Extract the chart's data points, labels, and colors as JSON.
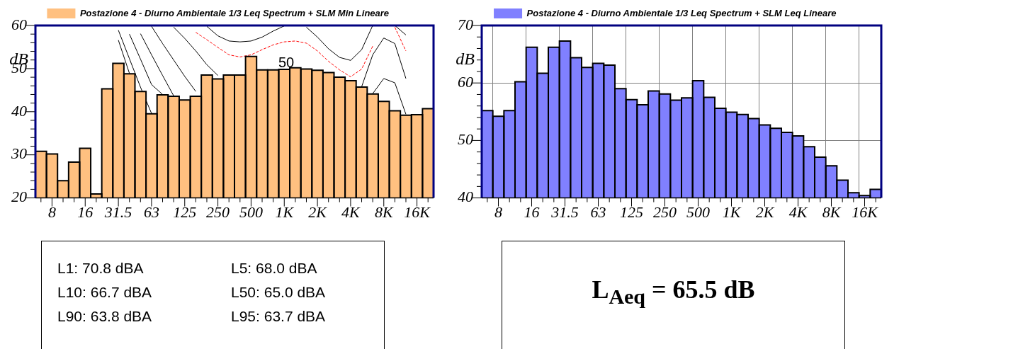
{
  "chart_data": [
    {
      "type": "bar",
      "ylabel": "dB",
      "legend": "top",
      "grid": false,
      "categories": [
        null,
        "8",
        null,
        null,
        "16",
        null,
        null,
        "31.5",
        null,
        null,
        "63",
        null,
        null,
        "125",
        null,
        null,
        "250",
        null,
        null,
        "500",
        null,
        null,
        "1K",
        null,
        null,
        "2K",
        null,
        null,
        "4K",
        null,
        null,
        "8K",
        null,
        null,
        "16K",
        null
      ],
      "ylim": [
        20,
        60
      ],
      "yticks": [
        20,
        {
          "value": 22,
          "label": null
        },
        {
          "value": 24,
          "label": null
        },
        {
          "value": 26,
          "label": null
        },
        {
          "value": 28,
          "label": null
        },
        30,
        {
          "value": 32,
          "label": null
        },
        {
          "value": 34,
          "label": null
        },
        {
          "value": 36,
          "label": null
        },
        {
          "value": 38,
          "label": null
        },
        40,
        {
          "value": 42,
          "label": null
        },
        {
          "value": 44,
          "label": null
        },
        {
          "value": 46,
          "label": null
        },
        {
          "value": 48,
          "label": null
        },
        50,
        {
          "value": 52,
          "label": null
        },
        {
          "value": 54,
          "label": null
        },
        {
          "value": 56,
          "label": null
        },
        {
          "value": 58,
          "label": null
        },
        60
      ],
      "annotations": [
        "50"
      ],
      "series": [
        {
          "name": "Postazione 4 - Diurno Ambientale 1/3 Leq Spectrum + SLM Min Lineare",
          "color": "#ffc080",
          "values": [
            30.8,
            30.2,
            24.0,
            28.3,
            31.5,
            20.9,
            45.3,
            51.2,
            48.8,
            44.7,
            39.5,
            43.9,
            43.6,
            42.7,
            43.6,
            48.5,
            47.6,
            48.5,
            48.5,
            52.8,
            49.7,
            49.7,
            49.8,
            50.2,
            49.9,
            49.6,
            49.1,
            48.0,
            47.2,
            45.7,
            44.1,
            42.4,
            40.2,
            39.2,
            39.3,
            40.7
          ]
        },
        {
          "type": "line",
          "color": "#000000",
          "values": [
            null,
            null,
            null,
            null,
            null,
            null,
            null,
            56.6,
            48.9,
            null,
            null,
            null,
            null,
            null,
            null,
            null,
            null,
            null,
            null,
            null,
            null,
            null,
            null,
            null,
            null,
            null,
            null,
            null,
            null,
            null,
            null,
            null,
            null,
            null,
            null,
            null
          ]
        },
        {
          "type": "line",
          "color": "#000000",
          "values": [
            null,
            null,
            null,
            null,
            null,
            null,
            null,
            58.9,
            52.3,
            45.7,
            39.6,
            null,
            null,
            null,
            null,
            null,
            null,
            null,
            null,
            null,
            null,
            null,
            null,
            null,
            null,
            null,
            null,
            null,
            null,
            null,
            null,
            null,
            null,
            null,
            null,
            null
          ]
        },
        {
          "type": "line",
          "color": "#000000",
          "values": [
            null,
            null,
            null,
            null,
            null,
            null,
            null,
            null,
            58.0,
            52.2,
            46.3,
            44.0,
            null,
            null,
            null,
            null,
            null,
            null,
            null,
            null,
            null,
            null,
            null,
            null,
            null,
            null,
            null,
            null,
            null,
            null,
            null,
            null,
            null,
            null,
            null,
            null
          ]
        },
        {
          "type": "line",
          "color": "#000000",
          "values": [
            null,
            null,
            null,
            null,
            null,
            null,
            null,
            null,
            null,
            58.1,
            53.2,
            48.4,
            43.7,
            null,
            null,
            null,
            null,
            null,
            null,
            null,
            null,
            null,
            null,
            null,
            null,
            null,
            null,
            null,
            null,
            null,
            null,
            null,
            null,
            null,
            null,
            null
          ]
        },
        {
          "type": "line",
          "color": "#000000",
          "values": [
            null,
            null,
            null,
            null,
            null,
            null,
            null,
            null,
            null,
            null,
            59.8,
            55.8,
            52.0,
            48.2,
            44.7,
            null,
            null,
            null,
            null,
            null,
            null,
            null,
            null,
            null,
            null,
            null,
            null,
            null,
            null,
            null,
            null,
            null,
            null,
            null,
            null,
            null
          ]
        },
        {
          "type": "line",
          "color": "#000000",
          "values": [
            null,
            null,
            null,
            null,
            null,
            null,
            null,
            null,
            null,
            null,
            null,
            null,
            59.6,
            57.0,
            54.1,
            50.9,
            48.4,
            null,
            null,
            null,
            null,
            null,
            null,
            null,
            null,
            null,
            null,
            null,
            null,
            null,
            null,
            null,
            null,
            null,
            null,
            null
          ]
        },
        {
          "type": "line",
          "color": "#000000",
          "values": [
            null,
            null,
            null,
            null,
            null,
            null,
            null,
            null,
            null,
            null,
            null,
            null,
            null,
            null,
            null,
            59.8,
            57.6,
            56.4,
            56.2,
            56.4,
            57.3,
            58.7,
            59.9,
            null,
            59.6,
            57.3,
            54.6,
            52.6,
            51.9,
            54.4,
            60.0,
            null,
            null,
            null,
            null,
            null
          ]
        },
        {
          "type": "line",
          "color": "#ff0000",
          "line_style": "dashed",
          "values": [
            null,
            null,
            null,
            null,
            null,
            null,
            null,
            null,
            null,
            null,
            null,
            null,
            null,
            null,
            58.4,
            56.7,
            54.9,
            53.2,
            52.7,
            53.2,
            54.4,
            55.5,
            56.2,
            56.4,
            55.9,
            54.1,
            51.7,
            49.7,
            48.1,
            49.9,
            55.2,
            null,
            null,
            null,
            null,
            null
          ]
        },
        {
          "type": "line",
          "color": "#ff0000",
          "line_style": "dashed",
          "values": [
            null,
            null,
            null,
            null,
            null,
            null,
            null,
            null,
            null,
            null,
            null,
            null,
            null,
            null,
            null,
            null,
            null,
            null,
            null,
            null,
            null,
            null,
            null,
            null,
            null,
            null,
            null,
            null,
            null,
            null,
            null,
            null,
            59.6,
            54.1,
            null,
            null
          ]
        },
        {
          "type": "line",
          "color": "#000000",
          "values": [
            null,
            null,
            null,
            null,
            null,
            null,
            null,
            null,
            null,
            null,
            null,
            null,
            null,
            null,
            null,
            null,
            null,
            null,
            null,
            null,
            null,
            null,
            null,
            null,
            null,
            null,
            null,
            null,
            null,
            null,
            null,
            null,
            60.0,
            57.8,
            null,
            null
          ]
        },
        {
          "type": "line",
          "color": "#000000",
          "values": [
            null,
            null,
            null,
            null,
            null,
            null,
            null,
            null,
            null,
            null,
            null,
            null,
            null,
            null,
            null,
            null,
            null,
            null,
            null,
            null,
            null,
            null,
            null,
            null,
            null,
            null,
            null,
            null,
            null,
            45.8,
            53.2,
            57.1,
            55.8,
            47.7,
            null,
            null
          ]
        },
        {
          "type": "line",
          "color": "#000000",
          "values": [
            null,
            null,
            null,
            null,
            null,
            null,
            null,
            null,
            null,
            null,
            null,
            null,
            null,
            null,
            null,
            null,
            null,
            null,
            null,
            null,
            null,
            null,
            null,
            null,
            null,
            null,
            null,
            null,
            null,
            null,
            44.2,
            47.7,
            46.7,
            39.4,
            null,
            null
          ]
        }
      ]
    },
    {
      "type": "bar",
      "ylabel": "dB",
      "legend": "top",
      "grid": true,
      "categories": [
        null,
        "8",
        null,
        null,
        "16",
        null,
        null,
        "31.5",
        null,
        null,
        "63",
        null,
        null,
        "125",
        null,
        null,
        "250",
        null,
        null,
        "500",
        null,
        null,
        "1K",
        null,
        null,
        "2K",
        null,
        null,
        "4K",
        null,
        null,
        "8K",
        null,
        null,
        "16K",
        null
      ],
      "ylim": [
        40,
        70
      ],
      "yticks": [
        40,
        {
          "value": 42,
          "label": null
        },
        {
          "value": 44,
          "label": null
        },
        {
          "value": 46,
          "label": null
        },
        {
          "value": 48,
          "label": null
        },
        50,
        {
          "value": 52,
          "label": null
        },
        {
          "value": 54,
          "label": null
        },
        {
          "value": 56,
          "label": null
        },
        {
          "value": 58,
          "label": null
        },
        60,
        {
          "value": 62,
          "label": null
        },
        {
          "value": 64,
          "label": null
        },
        {
          "value": 66,
          "label": null
        },
        {
          "value": 68,
          "label": null
        },
        70
      ],
      "series": [
        {
          "name": "Postazione 4 - Diurno Ambientale 1/3 Leq Spectrum + SLM Leq Lineare",
          "color": "#8080ff",
          "values": [
            55.2,
            54.2,
            55.2,
            60.2,
            66.2,
            61.7,
            66.2,
            67.3,
            64.4,
            62.7,
            63.4,
            63.1,
            59.0,
            57.1,
            56.2,
            58.6,
            58.1,
            57.0,
            57.4,
            60.4,
            57.5,
            55.6,
            54.9,
            54.5,
            53.8,
            52.7,
            52.1,
            51.4,
            50.8,
            48.9,
            47.1,
            45.6,
            43.1,
            40.9,
            40.4,
            41.5
          ]
        }
      ]
    },
    {
      "type": "other",
      "annotations": [
        "L1: 70.8 dBA",
        "L5: 68.0 dBA",
        "L10: 66.7 dBA",
        "L50: 65.0 dBA",
        "L90: 63.8 dBA",
        "L95: 63.7 dBA"
      ]
    },
    {
      "type": "other",
      "annotations": [
        "L$_{Aeq}$ = 65.5 dB"
      ]
    }
  ]
}
